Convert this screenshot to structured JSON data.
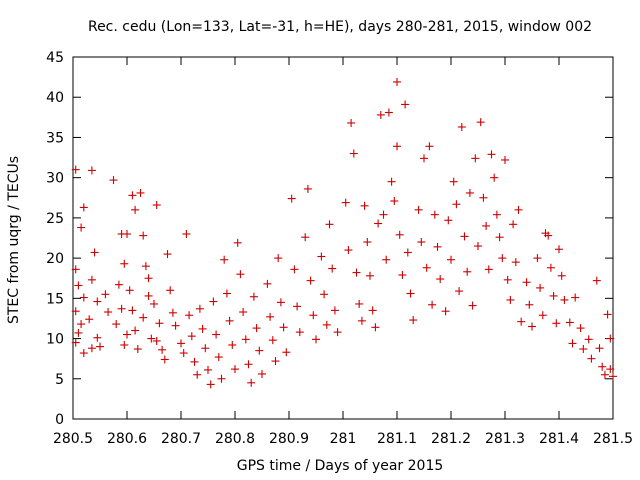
{
  "chart_data": {
    "type": "scatter",
    "title": "Rec. cedu (Lon=133, Lat=-31, h=HE), days 280-281, 2015, window 002",
    "xlabel": "GPS time / Days of year 2015",
    "ylabel": "STEC from uqrg / TECUs",
    "xlim": [
      280.5,
      281.5
    ],
    "ylim": [
      0,
      45
    ],
    "xticks": [
      280.5,
      280.6,
      280.7,
      280.8,
      280.9,
      281,
      281.1,
      281.2,
      281.3,
      281.4,
      281.5
    ],
    "xtick_labels": [
      "280.5",
      "280.6",
      "280.7",
      "280.8",
      "280.9",
      "281",
      "281.1",
      "281.2",
      "281.3",
      "281.4",
      "281.5"
    ],
    "yticks": [
      0,
      5,
      10,
      15,
      20,
      25,
      30,
      35,
      40,
      45
    ],
    "ytick_labels": [
      "0",
      "5",
      "10",
      "15",
      "20",
      "25",
      "30",
      "35",
      "40",
      "45"
    ],
    "grid": false,
    "marker": "+",
    "marker_color": "#cc0000",
    "series": [
      {
        "name": "STEC",
        "points": [
          [
            280.505,
            31.0
          ],
          [
            280.52,
            26.3
          ],
          [
            280.515,
            23.8
          ],
          [
            280.505,
            18.6
          ],
          [
            280.51,
            16.6
          ],
          [
            280.52,
            15.1
          ],
          [
            280.505,
            13.4
          ],
          [
            280.515,
            11.8
          ],
          [
            280.51,
            10.7
          ],
          [
            280.505,
            9.5
          ],
          [
            280.52,
            8.2
          ],
          [
            280.535,
            30.9
          ],
          [
            280.54,
            20.7
          ],
          [
            280.535,
            17.3
          ],
          [
            280.545,
            14.6
          ],
          [
            280.53,
            12.4
          ],
          [
            280.545,
            10.1
          ],
          [
            280.535,
            8.8
          ],
          [
            280.55,
            9.0
          ],
          [
            280.56,
            15.5
          ],
          [
            280.565,
            13.3
          ],
          [
            280.575,
            29.7
          ],
          [
            280.59,
            23.0
          ],
          [
            280.6,
            23.0
          ],
          [
            280.595,
            19.3
          ],
          [
            280.585,
            16.7
          ],
          [
            280.59,
            13.7
          ],
          [
            280.58,
            11.8
          ],
          [
            280.6,
            10.5
          ],
          [
            280.595,
            9.2
          ],
          [
            280.61,
            27.8
          ],
          [
            280.615,
            26.0
          ],
          [
            280.605,
            16.0
          ],
          [
            280.61,
            13.5
          ],
          [
            280.615,
            11.0
          ],
          [
            280.62,
            8.7
          ],
          [
            280.625,
            28.1
          ],
          [
            280.63,
            22.8
          ],
          [
            280.635,
            19.0
          ],
          [
            280.64,
            17.5
          ],
          [
            280.64,
            15.3
          ],
          [
            280.63,
            12.6
          ],
          [
            280.645,
            10.0
          ],
          [
            280.655,
            26.6
          ],
          [
            280.65,
            14.3
          ],
          [
            280.66,
            11.9
          ],
          [
            280.655,
            9.7
          ],
          [
            280.665,
            8.6
          ],
          [
            280.67,
            7.4
          ],
          [
            280.675,
            20.5
          ],
          [
            280.68,
            16.0
          ],
          [
            280.685,
            13.2
          ],
          [
            280.69,
            11.6
          ],
          [
            280.7,
            9.4
          ],
          [
            280.705,
            8.2
          ],
          [
            280.71,
            23.0
          ],
          [
            280.715,
            12.9
          ],
          [
            280.72,
            10.3
          ],
          [
            280.725,
            7.1
          ],
          [
            280.73,
            5.5
          ],
          [
            280.735,
            13.7
          ],
          [
            280.74,
            11.2
          ],
          [
            280.745,
            8.8
          ],
          [
            280.75,
            6.1
          ],
          [
            280.755,
            4.3
          ],
          [
            280.76,
            14.6
          ],
          [
            280.765,
            10.5
          ],
          [
            280.77,
            7.7
          ],
          [
            280.775,
            5.0
          ],
          [
            280.78,
            19.8
          ],
          [
            280.785,
            15.6
          ],
          [
            280.79,
            12.2
          ],
          [
            280.795,
            9.2
          ],
          [
            280.8,
            6.2
          ],
          [
            280.805,
            21.9
          ],
          [
            280.81,
            18.0
          ],
          [
            280.815,
            13.3
          ],
          [
            280.82,
            9.9
          ],
          [
            280.825,
            6.8
          ],
          [
            280.83,
            4.5
          ],
          [
            280.835,
            15.2
          ],
          [
            280.84,
            11.3
          ],
          [
            280.845,
            8.5
          ],
          [
            280.85,
            5.6
          ],
          [
            280.86,
            16.8
          ],
          [
            280.865,
            12.7
          ],
          [
            280.87,
            9.8
          ],
          [
            280.875,
            7.2
          ],
          [
            280.88,
            20.0
          ],
          [
            280.885,
            14.5
          ],
          [
            280.89,
            11.4
          ],
          [
            280.895,
            8.3
          ],
          [
            280.905,
            27.4
          ],
          [
            280.91,
            18.6
          ],
          [
            280.915,
            14.0
          ],
          [
            280.92,
            10.8
          ],
          [
            280.93,
            22.6
          ],
          [
            280.935,
            28.6
          ],
          [
            280.94,
            17.2
          ],
          [
            280.945,
            12.9
          ],
          [
            280.95,
            9.9
          ],
          [
            280.96,
            20.2
          ],
          [
            280.965,
            15.5
          ],
          [
            280.97,
            11.7
          ],
          [
            280.975,
            24.2
          ],
          [
            280.98,
            18.7
          ],
          [
            280.985,
            13.5
          ],
          [
            280.99,
            10.8
          ],
          [
            281.005,
            26.9
          ],
          [
            281.01,
            21.0
          ],
          [
            281.015,
            36.8
          ],
          [
            281.02,
            33.0
          ],
          [
            281.025,
            18.2
          ],
          [
            281.03,
            14.3
          ],
          [
            281.035,
            12.2
          ],
          [
            281.04,
            26.5
          ],
          [
            281.045,
            22.0
          ],
          [
            281.05,
            17.8
          ],
          [
            281.055,
            13.5
          ],
          [
            281.06,
            11.4
          ],
          [
            281.065,
            24.3
          ],
          [
            281.07,
            37.8
          ],
          [
            281.075,
            25.4
          ],
          [
            281.08,
            19.8
          ],
          [
            281.085,
            38.1
          ],
          [
            281.09,
            29.5
          ],
          [
            281.095,
            27.1
          ],
          [
            281.1,
            41.9
          ],
          [
            281.1,
            33.9
          ],
          [
            281.105,
            22.9
          ],
          [
            281.11,
            17.9
          ],
          [
            281.115,
            39.1
          ],
          [
            281.12,
            20.7
          ],
          [
            281.125,
            15.6
          ],
          [
            281.13,
            12.3
          ],
          [
            281.14,
            26.0
          ],
          [
            281.145,
            22.0
          ],
          [
            281.15,
            32.4
          ],
          [
            281.155,
            18.8
          ],
          [
            281.16,
            33.9
          ],
          [
            281.165,
            14.2
          ],
          [
            281.17,
            25.4
          ],
          [
            281.175,
            21.4
          ],
          [
            281.18,
            17.4
          ],
          [
            281.19,
            13.4
          ],
          [
            281.195,
            24.7
          ],
          [
            281.2,
            19.8
          ],
          [
            281.205,
            29.5
          ],
          [
            281.21,
            26.7
          ],
          [
            281.215,
            15.9
          ],
          [
            281.22,
            36.3
          ],
          [
            281.225,
            22.7
          ],
          [
            281.23,
            18.3
          ],
          [
            281.235,
            28.1
          ],
          [
            281.24,
            14.1
          ],
          [
            281.245,
            32.4
          ],
          [
            281.25,
            21.5
          ],
          [
            281.255,
            36.9
          ],
          [
            281.26,
            27.5
          ],
          [
            281.265,
            24.0
          ],
          [
            281.27,
            18.6
          ],
          [
            281.275,
            32.9
          ],
          [
            281.28,
            30.0
          ],
          [
            281.285,
            25.4
          ],
          [
            281.29,
            22.6
          ],
          [
            281.295,
            20.0
          ],
          [
            281.3,
            32.2
          ],
          [
            281.305,
            17.3
          ],
          [
            281.31,
            14.8
          ],
          [
            281.315,
            24.2
          ],
          [
            281.32,
            19.5
          ],
          [
            281.325,
            26.0
          ],
          [
            281.33,
            12.1
          ],
          [
            281.34,
            17.0
          ],
          [
            281.345,
            14.2
          ],
          [
            281.35,
            11.5
          ],
          [
            281.36,
            20.0
          ],
          [
            281.365,
            16.3
          ],
          [
            281.37,
            12.9
          ],
          [
            281.375,
            23.1
          ],
          [
            281.38,
            22.8
          ],
          [
            281.385,
            18.8
          ],
          [
            281.39,
            15.3
          ],
          [
            281.395,
            11.9
          ],
          [
            281.4,
            21.1
          ],
          [
            281.405,
            17.8
          ],
          [
            281.41,
            14.8
          ],
          [
            281.42,
            12.0
          ],
          [
            281.425,
            9.4
          ],
          [
            281.43,
            15.1
          ],
          [
            281.44,
            11.3
          ],
          [
            281.445,
            8.7
          ],
          [
            281.455,
            9.9
          ],
          [
            281.46,
            7.5
          ],
          [
            281.47,
            17.2
          ],
          [
            281.475,
            8.8
          ],
          [
            281.48,
            6.5
          ],
          [
            281.485,
            5.5
          ],
          [
            281.49,
            13.0
          ],
          [
            281.495,
            10.0
          ],
          [
            281.495,
            6.2
          ],
          [
            281.5,
            5.3
          ]
        ]
      }
    ]
  }
}
